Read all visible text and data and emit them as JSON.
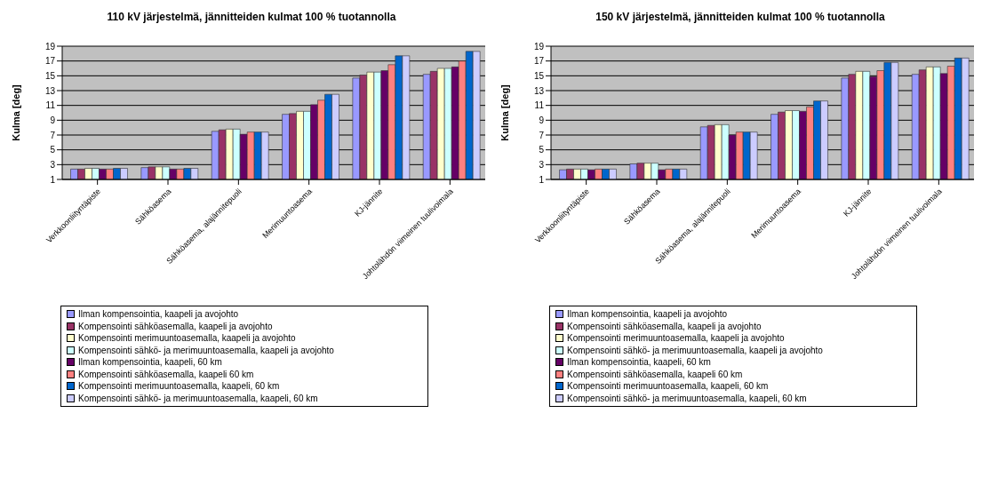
{
  "chart_data": [
    {
      "type": "bar",
      "title": "110 kV järjestelmä, jännitteiden kulmat 100 % tuotannolla",
      "ylabel": "Kulma [deg]",
      "categories": [
        "Verkkoonliityntäpiste",
        "Sähköasema",
        "Sähköasema, alajännitepuoli",
        "Merimuuntoasema",
        "KJ-jännite",
        "Johtolähdön viimeinen tuulivoimala"
      ],
      "series": [
        {
          "name": "Ilman kompensointia, kaapeli ja avojohto",
          "color": "#9999ff",
          "values": [
            2.4,
            2.6,
            7.5,
            9.8,
            14.7,
            15.2
          ]
        },
        {
          "name": "Kompensointi sähköasemalla, kaapeli ja avojohto",
          "color": "#993366",
          "values": [
            2.4,
            2.7,
            7.7,
            9.9,
            15.1,
            15.6
          ]
        },
        {
          "name": "Kompensointi merimuuntoasemalla, kaapeli ja avojohto",
          "color": "#ffffcc",
          "values": [
            2.5,
            2.7,
            7.8,
            10.2,
            15.5,
            16.0
          ]
        },
        {
          "name": "Kompensointi sähkö- ja merimuuntoasemalla, kaapeli ja avojohto",
          "color": "#ccffff",
          "values": [
            2.5,
            2.7,
            7.8,
            10.2,
            15.5,
            16.0
          ]
        },
        {
          "name": "Ilman kompensointia, kaapeli, 60 km",
          "color": "#660066",
          "values": [
            2.4,
            2.4,
            7.1,
            11.1,
            15.7,
            16.2
          ]
        },
        {
          "name": "Kompensointi sähköasemalla, kaapeli 60 km",
          "color": "#ff8080",
          "values": [
            2.4,
            2.4,
            7.4,
            11.7,
            16.5,
            17.0
          ]
        },
        {
          "name": "Kompensointi merimuuntoasemalla, kaapeli, 60 km",
          "color": "#0066cc",
          "values": [
            2.5,
            2.5,
            7.4,
            12.5,
            17.7,
            18.3
          ]
        },
        {
          "name": "Kompensointi sähkö- ja merimuuntoasemalla, kaapeli, 60 km",
          "color": "#ccccff",
          "values": [
            2.5,
            2.5,
            7.4,
            12.5,
            17.7,
            18.3
          ]
        }
      ],
      "ylim": [
        1,
        19
      ],
      "yticks": [
        1,
        3,
        5,
        7,
        9,
        11,
        13,
        15,
        17,
        19
      ],
      "grid": "y",
      "legend": "bottom"
    },
    {
      "type": "bar",
      "title": "150 kV järjestelmä, jännitteiden kulmat 100 % tuotannolla",
      "ylabel": "Kulma [deg]",
      "categories": [
        "Verkkoonliityntäpiste",
        "Sähköasema",
        "Sähköasema, alajännitepuoli",
        "Merimuuntoasema",
        "KJ-jännite",
        "Johtolähdön viimeinen tuulivoimala"
      ],
      "series": [
        {
          "name": "Ilman kompensointia, kaapeli ja avojohto",
          "color": "#9999ff",
          "values": [
            2.3,
            3.1,
            8.1,
            9.8,
            14.7,
            15.2
          ]
        },
        {
          "name": "Kompensointi sähköasemalla, kaapeli ja avojohto",
          "color": "#993366",
          "values": [
            2.4,
            3.2,
            8.3,
            10.1,
            15.2,
            15.8
          ]
        },
        {
          "name": "Kompensointi merimuuntoasemalla, kaapeli ja avojohto",
          "color": "#ffffcc",
          "values": [
            2.4,
            3.2,
            8.4,
            10.3,
            15.6,
            16.2
          ]
        },
        {
          "name": "Kompensointi sähkö- ja merimuuntoasemalla, kaapeli ja avojohto",
          "color": "#ccffff",
          "values": [
            2.4,
            3.2,
            8.4,
            10.3,
            15.6,
            16.2
          ]
        },
        {
          "name": "Ilman kompensointia, kaapeli, 60 km",
          "color": "#660066",
          "values": [
            2.3,
            2.3,
            7.0,
            10.2,
            14.9,
            15.3
          ]
        },
        {
          "name": "Kompensointi sähköasemalla, kaapeli 60 km",
          "color": "#ff8080",
          "values": [
            2.4,
            2.4,
            7.4,
            10.8,
            15.7,
            16.3
          ]
        },
        {
          "name": "Kompensointi merimuuntoasemalla, kaapeli, 60 km",
          "color": "#0066cc",
          "values": [
            2.4,
            2.4,
            7.4,
            11.6,
            16.8,
            17.4
          ]
        },
        {
          "name": "Kompensointi sähkö- ja merimuuntoasemalla, kaapeli, 60 km",
          "color": "#ccccff",
          "values": [
            2.4,
            2.4,
            7.4,
            11.6,
            16.8,
            17.4
          ]
        }
      ],
      "ylim": [
        1,
        19
      ],
      "yticks": [
        1,
        3,
        5,
        7,
        9,
        11,
        13,
        15,
        17,
        19
      ],
      "grid": "y",
      "legend": "bottom"
    }
  ]
}
